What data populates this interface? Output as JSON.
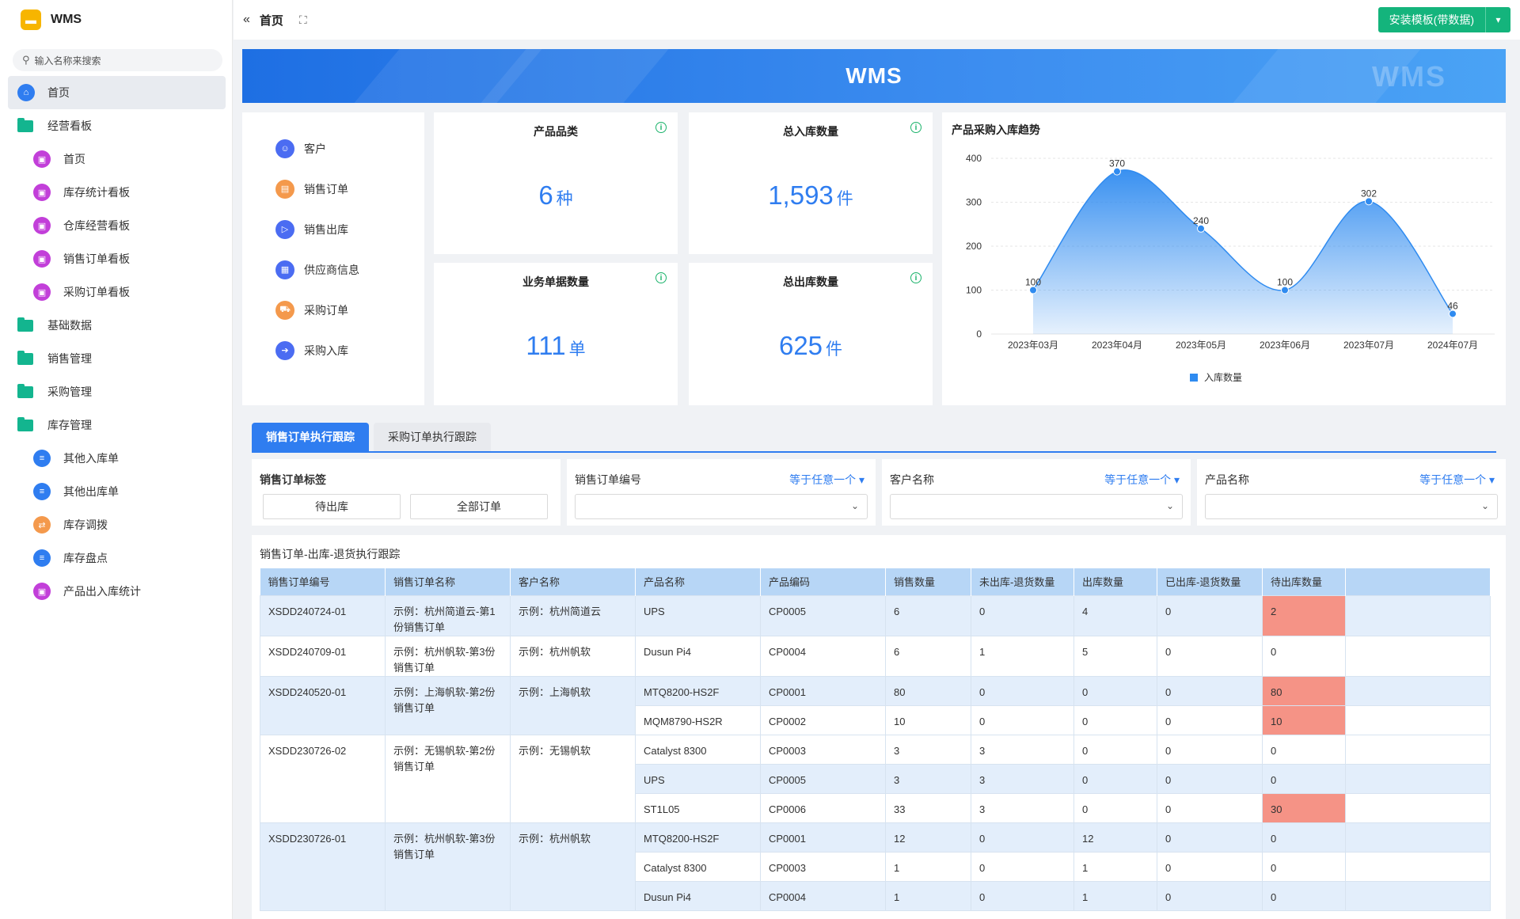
{
  "app": {
    "name": "WMS"
  },
  "search": {
    "placeholder": "输入名称来搜索"
  },
  "sidebar": {
    "items": [
      {
        "label": "首页",
        "level": "top",
        "icon": "home-icon",
        "active": true
      },
      {
        "label": "经营看板",
        "level": "top",
        "icon": "folder-icon"
      },
      {
        "label": "首页",
        "level": "sub",
        "icon": "dashboard-icon"
      },
      {
        "label": "库存统计看板",
        "level": "sub",
        "icon": "dashboard-icon"
      },
      {
        "label": "仓库经营看板",
        "level": "sub",
        "icon": "dashboard-icon"
      },
      {
        "label": "销售订单看板",
        "level": "sub",
        "icon": "dashboard-icon"
      },
      {
        "label": "采购订单看板",
        "level": "sub",
        "icon": "dashboard-icon"
      },
      {
        "label": "基础数据",
        "level": "top",
        "icon": "folder-icon"
      },
      {
        "label": "销售管理",
        "level": "top",
        "icon": "folder-icon"
      },
      {
        "label": "采购管理",
        "level": "top",
        "icon": "folder-icon"
      },
      {
        "label": "库存管理",
        "level": "top",
        "icon": "folder-icon"
      },
      {
        "label": "其他入库单",
        "level": "sub",
        "icon": "document-icon"
      },
      {
        "label": "其他出库单",
        "level": "sub",
        "icon": "document-icon"
      },
      {
        "label": "库存调拨",
        "level": "sub",
        "icon": "transfer-icon"
      },
      {
        "label": "库存盘点",
        "level": "sub",
        "icon": "document-icon"
      },
      {
        "label": "产品出入库统计",
        "level": "sub",
        "icon": "dashboard-icon"
      }
    ]
  },
  "topbar": {
    "title": "首页",
    "install_label": "安装模板(带数据)"
  },
  "banner": {
    "title": "WMS",
    "watermark": "WMS"
  },
  "quick_links": [
    {
      "label": "客户",
      "icon": "customer-icon",
      "color": "#4b6cf2"
    },
    {
      "label": "销售订单",
      "icon": "sales-order-icon",
      "color": "#f4994c"
    },
    {
      "label": "销售出库",
      "icon": "sales-out-icon",
      "color": "#4b6cf2"
    },
    {
      "label": "供应商信息",
      "icon": "supplier-icon",
      "color": "#4b6cf2"
    },
    {
      "label": "采购订单",
      "icon": "purchase-order-icon",
      "color": "#f4994c"
    },
    {
      "label": "采购入库",
      "icon": "purchase-in-icon",
      "color": "#4b6cf2"
    }
  ],
  "stats": {
    "categories": {
      "title": "产品品类",
      "value": "6",
      "unit": "种"
    },
    "inbound": {
      "title": "总入库数量",
      "value": "1,593",
      "unit": "件"
    },
    "documents": {
      "title": "业务单据数量",
      "value": "111",
      "unit": "单"
    },
    "outbound": {
      "title": "总出库数量",
      "value": "625",
      "unit": "件"
    }
  },
  "chart_data": {
    "type": "area",
    "title": "产品采购入库趋势",
    "categories": [
      "2023年03月",
      "2023年04月",
      "2023年05月",
      "2023年06月",
      "2023年07月",
      "2024年07月"
    ],
    "series": [
      {
        "name": "入库数量",
        "values": [
          100,
          370,
          240,
          100,
          302,
          46
        ]
      }
    ],
    "ylim": [
      0,
      400
    ],
    "yticks": [
      0,
      100,
      200,
      300,
      400
    ],
    "color": "#2f8bf0",
    "legend": "bottom",
    "grid": true
  },
  "tabs": [
    {
      "label": "销售订单执行跟踪",
      "active": true
    },
    {
      "label": "采购订单执行跟踪",
      "active": false
    }
  ],
  "filters": {
    "tag": {
      "label": "销售订单标签",
      "buttons": [
        "待出库",
        "全部订单"
      ]
    },
    "order_no": {
      "label": "销售订单编号",
      "op": "等于任意一个"
    },
    "customer": {
      "label": "客户名称",
      "op": "等于任意一个"
    },
    "product": {
      "label": "产品名称",
      "op": "等于任意一个"
    }
  },
  "table": {
    "title": "销售订单-出库-退货执行跟踪",
    "headers": [
      "销售订单编号",
      "销售订单名称",
      "客户名称",
      "产品名称",
      "产品编码",
      "销售数量",
      "未出库-退货数量",
      "出库数量",
      "已出库-退货数量",
      "待出库数量"
    ],
    "groups": [
      {
        "order_no": "XSDD240724-01",
        "order_name": "示例：杭州简道云-第1份销售订单",
        "customer": "示例：杭州简道云",
        "lines": [
          {
            "product": "UPS",
            "code": "CP0005",
            "qty": "6",
            "unshipped_return": "0",
            "shipped": "4",
            "shipped_return": "0",
            "pending": "2",
            "highlight": true
          }
        ]
      },
      {
        "order_no": "XSDD240709-01",
        "order_name": "示例：杭州帆软-第3份销售订单",
        "customer": "示例：杭州帆软",
        "lines": [
          {
            "product": "Dusun Pi4",
            "code": "CP0004",
            "qty": "6",
            "unshipped_return": "1",
            "shipped": "5",
            "shipped_return": "0",
            "pending": "0",
            "highlight": false
          }
        ]
      },
      {
        "order_no": "XSDD240520-01",
        "order_name": "示例：上海帆软-第2份销售订单",
        "customer": "示例：上海帆软",
        "lines": [
          {
            "product": "MTQ8200-HS2F",
            "code": "CP0001",
            "qty": "80",
            "unshipped_return": "0",
            "shipped": "0",
            "shipped_return": "0",
            "pending": "80",
            "highlight": true
          },
          {
            "product": "MQM8790-HS2R",
            "code": "CP0002",
            "qty": "10",
            "unshipped_return": "0",
            "shipped": "0",
            "shipped_return": "0",
            "pending": "10",
            "highlight": true
          }
        ]
      },
      {
        "order_no": "XSDD230726-02",
        "order_name": "示例：无锡帆软-第2份销售订单",
        "customer": "示例：无锡帆软",
        "lines": [
          {
            "product": "Catalyst 8300",
            "code": "CP0003",
            "qty": "3",
            "unshipped_return": "3",
            "shipped": "0",
            "shipped_return": "0",
            "pending": "0",
            "highlight": false
          },
          {
            "product": "UPS",
            "code": "CP0005",
            "qty": "3",
            "unshipped_return": "3",
            "shipped": "0",
            "shipped_return": "0",
            "pending": "0",
            "highlight": false
          },
          {
            "product": "ST1L05",
            "code": "CP0006",
            "qty": "33",
            "unshipped_return": "3",
            "shipped": "0",
            "shipped_return": "0",
            "pending": "30",
            "highlight": true
          }
        ]
      },
      {
        "order_no": "XSDD230726-01",
        "order_name": "示例：杭州帆软-第3份销售订单",
        "customer": "示例：杭州帆软",
        "lines": [
          {
            "product": "MTQ8200-HS2F",
            "code": "CP0001",
            "qty": "12",
            "unshipped_return": "0",
            "shipped": "12",
            "shipped_return": "0",
            "pending": "0",
            "highlight": false
          },
          {
            "product": "Catalyst 8300",
            "code": "CP0003",
            "qty": "1",
            "unshipped_return": "0",
            "shipped": "1",
            "shipped_return": "0",
            "pending": "0",
            "highlight": false
          },
          {
            "product": "Dusun Pi4",
            "code": "CP0004",
            "qty": "1",
            "unshipped_return": "0",
            "shipped": "1",
            "shipped_return": "0",
            "pending": "0",
            "highlight": false
          }
        ]
      }
    ]
  }
}
